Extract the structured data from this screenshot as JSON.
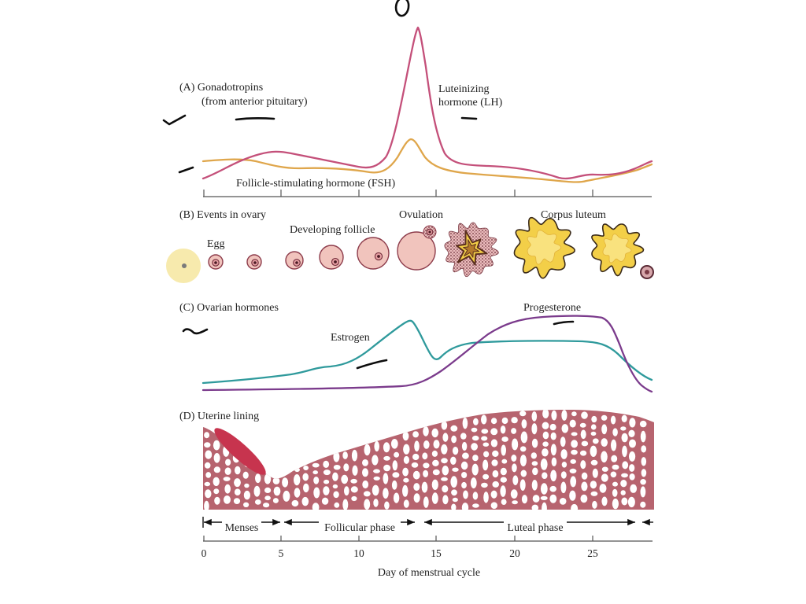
{
  "figure": {
    "panel_a": {
      "label": "(A) Gonadotropins",
      "sublabel": "(from anterior pituitary)",
      "lh_label_line1": "Luteinizing",
      "lh_label_line2": "hormone (LH)",
      "fsh_label": "Follicle-stimulating hormone (FSH)"
    },
    "panel_b": {
      "label": "(B) Events in ovary",
      "egg": "Egg",
      "developing_follicle": "Developing follicle",
      "ovulation": "Ovulation",
      "corpus_luteum": "Corpus luteum"
    },
    "panel_c": {
      "label": "(C) Ovarian hormones",
      "estrogen": "Estrogen",
      "progesterone": "Progesterone"
    },
    "panel_d": {
      "label": "(D) Uterine lining"
    },
    "phases": {
      "menses": "Menses",
      "follicular": "Follicular phase",
      "luteal": "Luteal phase"
    },
    "axis": {
      "ticks": [
        "0",
        "5",
        "10",
        "15",
        "20",
        "25"
      ],
      "label": "Day of menstrual cycle"
    }
  },
  "colors": {
    "lh": "#c4507a",
    "fsh": "#dfa64b",
    "estrogen": "#2f9a9c",
    "progesterone": "#7b3b8c",
    "uterine_lining": "#b7646f",
    "menses": "#c7344e",
    "corpus_luteum": "#f3cf48",
    "highlight": "#f6e8a6"
  }
}
